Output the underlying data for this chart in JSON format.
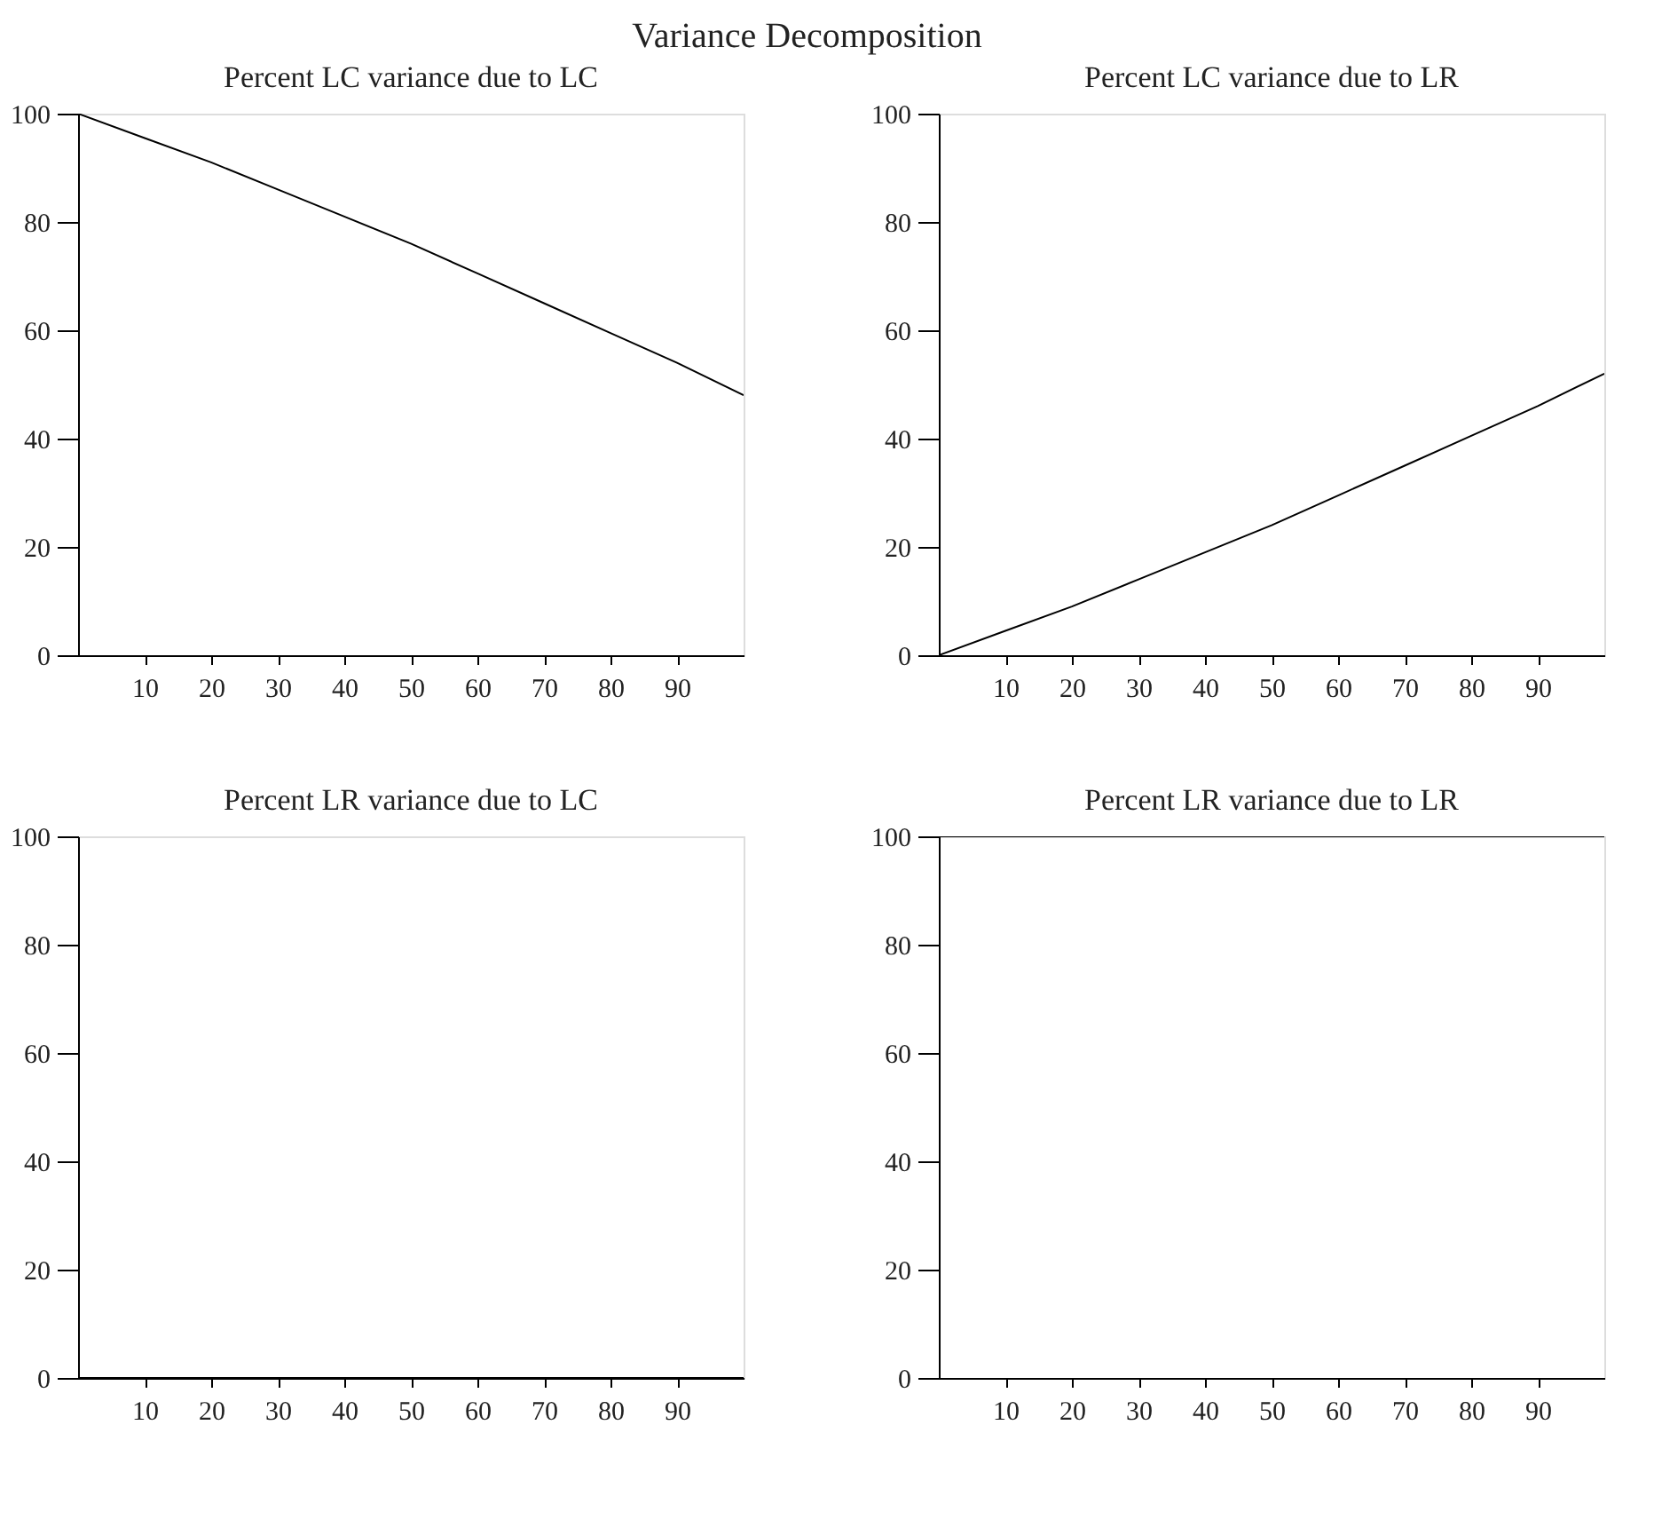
{
  "chart_data": [
    {
      "type": "line",
      "title": "Percent LC variance due to LC",
      "annotations": [
        "Variance Decomposition"
      ],
      "x": [
        0,
        10,
        20,
        30,
        40,
        50,
        60,
        70,
        80,
        90,
        100
      ],
      "series": [
        {
          "color": "#000000",
          "values": [
            100,
            95.5,
            91,
            86,
            81,
            76,
            70.5,
            65,
            59.5,
            54,
            48
          ]
        }
      ],
      "xlim": [
        0,
        100
      ],
      "xticks": [
        10,
        20,
        30,
        40,
        50,
        60,
        70,
        80,
        90
      ],
      "ylim": [
        0,
        100
      ],
      "yticks": [
        0,
        20,
        40,
        60,
        80,
        100
      ],
      "grid": false
    },
    {
      "type": "line",
      "title": "Percent LC variance due to LR",
      "x": [
        0,
        10,
        20,
        30,
        40,
        50,
        60,
        70,
        80,
        90,
        100
      ],
      "series": [
        {
          "color": "#000000",
          "values": [
            0,
            4.5,
            9,
            14,
            19,
            24,
            29.5,
            35,
            40.5,
            46,
            52
          ]
        }
      ],
      "xlim": [
        0,
        100
      ],
      "xticks": [
        10,
        20,
        30,
        40,
        50,
        60,
        70,
        80,
        90
      ],
      "ylim": [
        0,
        100
      ],
      "yticks": [
        0,
        20,
        40,
        60,
        80,
        100
      ],
      "grid": false
    },
    {
      "type": "line",
      "title": "Percent LR variance due to LC",
      "x": [
        0,
        10,
        20,
        30,
        40,
        50,
        60,
        70,
        80,
        90,
        100
      ],
      "series": [
        {
          "color": "#000000",
          "values": [
            0,
            0,
            0,
            0,
            0,
            0,
            0,
            0,
            0,
            0,
            0
          ]
        }
      ],
      "xlim": [
        0,
        100
      ],
      "xticks": [
        10,
        20,
        30,
        40,
        50,
        60,
        70,
        80,
        90
      ],
      "ylim": [
        0,
        100
      ],
      "yticks": [
        0,
        20,
        40,
        60,
        80,
        100
      ],
      "grid": false
    },
    {
      "type": "line",
      "title": "Percent LR variance due to LR",
      "x": [
        0,
        10,
        20,
        30,
        40,
        50,
        60,
        70,
        80,
        90,
        100
      ],
      "series": [
        {
          "color": "#000000",
          "values": [
            100,
            100,
            100,
            100,
            100,
            100,
            100,
            100,
            100,
            100,
            100
          ]
        }
      ],
      "xlim": [
        0,
        100
      ],
      "xticks": [
        10,
        20,
        30,
        40,
        50,
        60,
        70,
        80,
        90
      ],
      "ylim": [
        0,
        100
      ],
      "yticks": [
        0,
        20,
        40,
        60,
        80,
        100
      ],
      "grid": false
    }
  ]
}
